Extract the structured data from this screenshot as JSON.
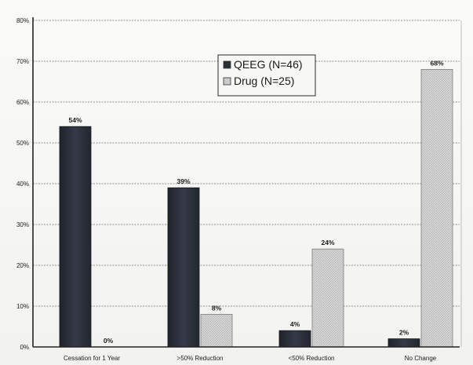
{
  "chart_data": {
    "type": "bar",
    "categories": [
      "Cessation for 1 Year",
      ">50% Reduction",
      "<50% Reduction",
      "No Change"
    ],
    "series": [
      {
        "name": "QEEG (N=46)",
        "values": [
          54,
          39,
          4,
          2
        ],
        "labels": [
          "54%",
          "39%",
          "4%",
          "2%"
        ],
        "color": "#2b2f3a"
      },
      {
        "name": "Drug (N=25)",
        "values": [
          0,
          8,
          24,
          68
        ],
        "labels": [
          "0%",
          "8%",
          "24%",
          "68%"
        ],
        "color": "#d4d4d4"
      }
    ],
    "ylim": [
      0,
      80
    ],
    "yticks": [
      0,
      10,
      20,
      30,
      40,
      50,
      60,
      70,
      80
    ],
    "ytick_labels": [
      "0%",
      "10%",
      "20%",
      "30%",
      "40%",
      "50%",
      "60%",
      "70%",
      "80%"
    ],
    "grid": true,
    "legend_position": "top-center"
  }
}
